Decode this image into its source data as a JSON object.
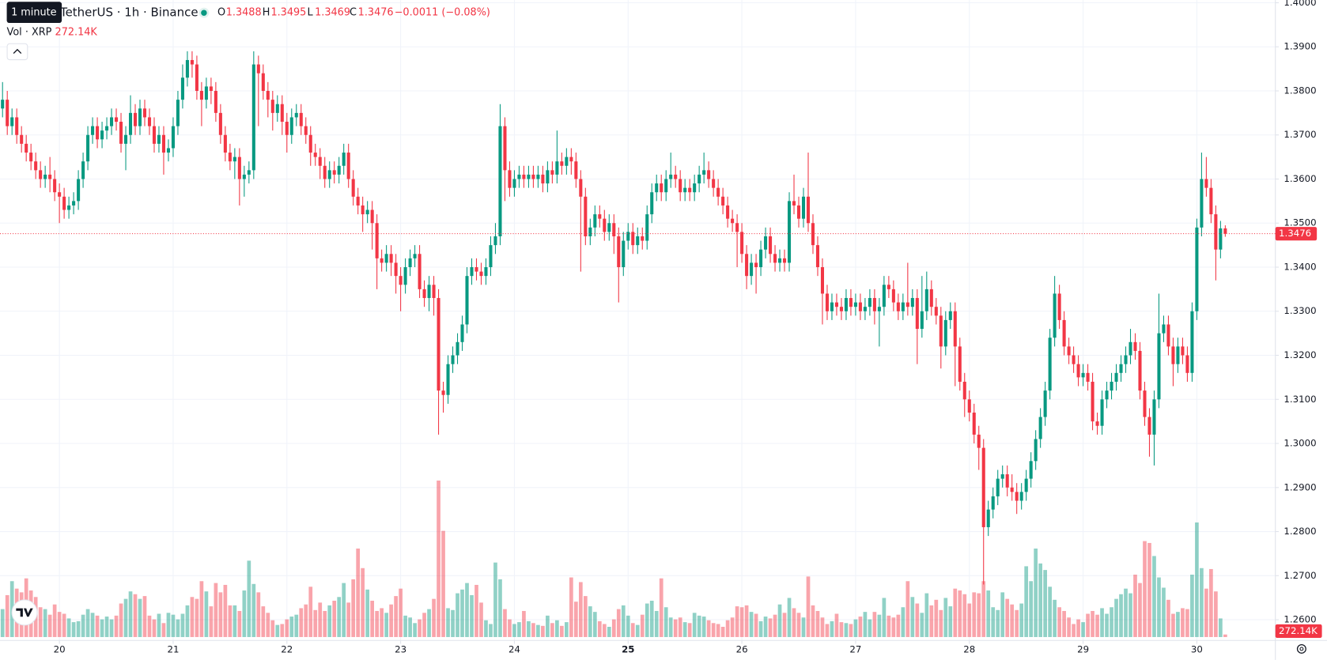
{
  "chart_data": {
    "type": "candlestick",
    "title": "TetherUS · 1h · Binance",
    "tooltip": "1 minute",
    "legend_labels": [
      "O",
      "H",
      "L",
      "C"
    ],
    "change": "−0.0011 (−0.08%)",
    "volume_title": "Vol · XRP",
    "up_color": "#089981",
    "down_color": "#f23645",
    "grid": true,
    "ylim": [
      1.2553,
      1.4006
    ],
    "yticks": [
      {
        "value": 1.4,
        "label": "1.4000"
      },
      {
        "value": 1.39,
        "label": "1.3900"
      },
      {
        "value": 1.38,
        "label": "1.3800"
      },
      {
        "value": 1.37,
        "label": "1.3700"
      },
      {
        "value": 1.36,
        "label": "1.3600"
      },
      {
        "value": 1.35,
        "label": "1.3500"
      },
      {
        "value": 1.34,
        "label": "1.3400"
      },
      {
        "value": 1.33,
        "label": "1.3300"
      },
      {
        "value": 1.32,
        "label": "1.3200"
      },
      {
        "value": 1.31,
        "label": "1.3100"
      },
      {
        "value": 1.3,
        "label": "1.3000"
      },
      {
        "value": 1.29,
        "label": "1.2900"
      },
      {
        "value": 1.28,
        "label": "1.2800"
      },
      {
        "value": 1.27,
        "label": "1.2700"
      },
      {
        "value": 1.26,
        "label": "1.2600"
      }
    ],
    "xticks": [
      {
        "value": 12,
        "label": "20"
      },
      {
        "value": 36,
        "label": "21"
      },
      {
        "value": 60,
        "label": "22"
      },
      {
        "value": 84,
        "label": "23"
      },
      {
        "value": 108,
        "label": "24"
      },
      {
        "value": 132,
        "label": "25",
        "bold": true
      },
      {
        "value": 156,
        "label": "26"
      },
      {
        "value": 180,
        "label": "27"
      },
      {
        "value": 204,
        "label": "28"
      },
      {
        "value": 228,
        "label": "29"
      },
      {
        "value": 252,
        "label": "30"
      }
    ],
    "open": [
      1.376,
      1.378,
      1.372,
      1.374,
      1.37,
      1.368,
      1.366,
      1.364,
      1.362,
      1.36,
      1.361,
      1.36,
      1.357,
      1.356,
      1.353,
      1.354,
      1.355,
      1.36,
      1.364,
      1.37,
      1.372,
      1.369,
      1.371,
      1.372,
      1.374,
      1.373,
      1.368,
      1.37,
      1.375,
      1.372,
      1.376,
      1.374,
      1.372,
      1.368,
      1.37,
      1.366,
      1.367,
      1.372,
      1.378,
      1.383,
      1.387,
      1.386,
      1.38,
      1.378,
      1.381,
      1.38,
      1.375,
      1.37,
      1.366,
      1.364,
      1.365,
      1.36,
      1.361,
      1.362,
      1.386,
      1.384,
      1.38,
      1.378,
      1.375,
      1.377,
      1.373,
      1.37,
      1.374,
      1.375,
      1.372,
      1.37,
      1.366,
      1.365,
      1.363,
      1.36,
      1.362,
      1.361,
      1.363,
      1.366,
      1.36,
      1.356,
      1.354,
      1.352,
      1.353,
      1.35,
      1.342,
      1.341,
      1.343,
      1.341,
      1.338,
      1.336,
      1.34,
      1.342,
      1.343,
      1.335,
      1.333,
      1.336,
      1.333,
      1.312,
      1.311,
      1.318,
      1.32,
      1.323,
      1.327,
      1.338,
      1.34,
      1.339,
      1.338,
      1.34,
      1.345,
      1.347,
      1.372,
      1.362,
      1.358,
      1.36,
      1.361,
      1.36,
      1.361,
      1.36,
      1.361,
      1.359,
      1.362,
      1.361,
      1.364,
      1.363,
      1.365,
      1.364,
      1.36,
      1.356,
      1.347,
      1.349,
      1.352,
      1.351,
      1.348,
      1.35,
      1.347,
      1.34,
      1.346,
      1.348,
      1.345,
      1.347,
      1.346,
      1.352,
      1.357,
      1.359,
      1.357,
      1.36,
      1.361,
      1.36,
      1.357,
      1.358,
      1.357,
      1.359,
      1.361,
      1.362,
      1.36,
      1.358,
      1.356,
      1.354,
      1.351,
      1.35,
      1.348,
      1.343,
      1.338,
      1.341,
      1.34,
      1.344,
      1.347,
      1.343,
      1.341,
      1.342,
      1.341,
      1.355,
      1.354,
      1.351,
      1.356,
      1.35,
      1.345,
      1.34,
      1.334,
      1.33,
      1.332,
      1.331,
      1.33,
      1.333,
      1.331,
      1.332,
      1.33,
      1.331,
      1.333,
      1.33,
      1.331,
      1.336,
      1.335,
      1.332,
      1.33,
      1.332,
      1.331,
      1.333,
      1.326,
      1.33,
      1.335,
      1.331,
      1.329,
      1.322,
      1.328,
      1.33,
      1.322,
      1.314,
      1.31,
      1.307,
      1.302,
      1.299,
      1.281,
      1.285,
      1.288,
      1.292,
      1.293,
      1.29,
      1.289,
      1.287,
      1.289,
      1.292,
      1.296,
      1.301,
      1.306,
      1.312,
      1.324,
      1.334,
      1.328,
      1.322,
      1.32,
      1.318,
      1.315,
      1.316,
      1.314,
      1.305,
      1.304,
      1.31,
      1.312,
      1.314,
      1.316,
      1.318,
      1.32,
      1.323,
      1.321,
      1.312,
      1.306,
      1.302,
      1.31,
      1.325,
      1.327,
      1.322,
      1.318,
      1.322,
      1.32,
      1.316,
      1.33,
      1.349,
      1.36,
      1.358,
      1.352,
      1.344,
      1.3488
    ],
    "high": [
      1.382,
      1.38,
      1.376,
      1.376,
      1.372,
      1.37,
      1.368,
      1.366,
      1.364,
      1.363,
      1.365,
      1.362,
      1.359,
      1.358,
      1.356,
      1.357,
      1.362,
      1.366,
      1.372,
      1.374,
      1.374,
      1.373,
      1.374,
      1.376,
      1.376,
      1.375,
      1.372,
      1.379,
      1.377,
      1.378,
      1.378,
      1.376,
      1.374,
      1.372,
      1.372,
      1.369,
      1.374,
      1.38,
      1.386,
      1.389,
      1.389,
      1.388,
      1.382,
      1.383,
      1.383,
      1.382,
      1.377,
      1.372,
      1.368,
      1.367,
      1.367,
      1.363,
      1.364,
      1.389,
      1.388,
      1.386,
      1.382,
      1.38,
      1.379,
      1.379,
      1.375,
      1.376,
      1.377,
      1.377,
      1.374,
      1.372,
      1.368,
      1.367,
      1.365,
      1.364,
      1.364,
      1.365,
      1.368,
      1.368,
      1.362,
      1.358,
      1.356,
      1.355,
      1.355,
      1.352,
      1.344,
      1.345,
      1.345,
      1.343,
      1.34,
      1.342,
      1.344,
      1.345,
      1.345,
      1.337,
      1.338,
      1.338,
      1.335,
      1.314,
      1.32,
      1.322,
      1.325,
      1.329,
      1.34,
      1.342,
      1.342,
      1.341,
      1.342,
      1.347,
      1.35,
      1.377,
      1.374,
      1.364,
      1.362,
      1.363,
      1.363,
      1.363,
      1.363,
      1.363,
      1.363,
      1.364,
      1.364,
      1.371,
      1.366,
      1.367,
      1.367,
      1.366,
      1.362,
      1.358,
      1.351,
      1.354,
      1.354,
      1.353,
      1.352,
      1.352,
      1.349,
      1.348,
      1.35,
      1.35,
      1.349,
      1.349,
      1.354,
      1.359,
      1.361,
      1.361,
      1.362,
      1.366,
      1.363,
      1.362,
      1.36,
      1.36,
      1.361,
      1.363,
      1.366,
      1.364,
      1.362,
      1.36,
      1.358,
      1.356,
      1.353,
      1.352,
      1.35,
      1.345,
      1.343,
      1.343,
      1.346,
      1.349,
      1.349,
      1.345,
      1.344,
      1.344,
      1.357,
      1.361,
      1.356,
      1.358,
      1.366,
      1.352,
      1.347,
      1.342,
      1.336,
      1.334,
      1.334,
      1.333,
      1.335,
      1.335,
      1.334,
      1.334,
      1.333,
      1.335,
      1.335,
      1.333,
      1.338,
      1.338,
      1.337,
      1.334,
      1.334,
      1.341,
      1.335,
      1.335,
      1.338,
      1.339,
      1.337,
      1.333,
      1.331,
      1.33,
      1.332,
      1.332,
      1.324,
      1.316,
      1.312,
      1.309,
      1.304,
      1.301,
      1.287,
      1.29,
      1.294,
      1.295,
      1.295,
      1.293,
      1.291,
      1.291,
      1.294,
      1.298,
      1.303,
      1.308,
      1.314,
      1.326,
      1.338,
      1.336,
      1.33,
      1.324,
      1.322,
      1.32,
      1.318,
      1.318,
      1.316,
      1.307,
      1.312,
      1.314,
      1.316,
      1.318,
      1.32,
      1.322,
      1.326,
      1.325,
      1.323,
      1.314,
      1.308,
      1.312,
      1.334,
      1.329,
      1.329,
      1.324,
      1.324,
      1.324,
      1.322,
      1.332,
      1.351,
      1.366,
      1.365,
      1.36,
      1.354,
      1.3505,
      1.3495
    ],
    "low": [
      1.374,
      1.37,
      1.37,
      1.368,
      1.366,
      1.364,
      1.362,
      1.36,
      1.358,
      1.358,
      1.357,
      1.355,
      1.35,
      1.351,
      1.351,
      1.352,
      1.353,
      1.358,
      1.362,
      1.368,
      1.367,
      1.367,
      1.369,
      1.37,
      1.371,
      1.366,
      1.362,
      1.368,
      1.37,
      1.37,
      1.372,
      1.37,
      1.366,
      1.366,
      1.361,
      1.364,
      1.365,
      1.37,
      1.376,
      1.381,
      1.383,
      1.378,
      1.372,
      1.376,
      1.377,
      1.373,
      1.368,
      1.364,
      1.362,
      1.36,
      1.354,
      1.356,
      1.359,
      1.36,
      1.372,
      1.378,
      1.374,
      1.371,
      1.373,
      1.37,
      1.366,
      1.368,
      1.372,
      1.37,
      1.368,
      1.363,
      1.363,
      1.36,
      1.358,
      1.358,
      1.359,
      1.359,
      1.361,
      1.358,
      1.354,
      1.352,
      1.348,
      1.35,
      1.344,
      1.335,
      1.339,
      1.339,
      1.338,
      1.334,
      1.33,
      1.334,
      1.338,
      1.34,
      1.333,
      1.331,
      1.33,
      1.329,
      1.302,
      1.307,
      1.309,
      1.316,
      1.318,
      1.321,
      1.325,
      1.336,
      1.337,
      1.336,
      1.336,
      1.338,
      1.343,
      1.345,
      1.355,
      1.356,
      1.356,
      1.358,
      1.358,
      1.358,
      1.358,
      1.358,
      1.357,
      1.357,
      1.359,
      1.359,
      1.361,
      1.361,
      1.361,
      1.358,
      1.339,
      1.345,
      1.345,
      1.347,
      1.349,
      1.346,
      1.346,
      1.343,
      1.332,
      1.338,
      1.344,
      1.343,
      1.343,
      1.344,
      1.344,
      1.35,
      1.355,
      1.355,
      1.355,
      1.358,
      1.358,
      1.355,
      1.355,
      1.355,
      1.355,
      1.357,
      1.359,
      1.358,
      1.356,
      1.354,
      1.352,
      1.349,
      1.348,
      1.34,
      1.341,
      1.335,
      1.336,
      1.334,
      1.338,
      1.342,
      1.341,
      1.339,
      1.339,
      1.339,
      1.339,
      1.352,
      1.349,
      1.349,
      1.348,
      1.343,
      1.338,
      1.327,
      1.328,
      1.328,
      1.329,
      1.328,
      1.328,
      1.329,
      1.329,
      1.328,
      1.328,
      1.329,
      1.327,
      1.322,
      1.329,
      1.333,
      1.33,
      1.328,
      1.328,
      1.329,
      1.329,
      1.318,
      1.324,
      1.328,
      1.329,
      1.327,
      1.317,
      1.32,
      1.326,
      1.313,
      1.312,
      1.306,
      1.305,
      1.3,
      1.294,
      1.268,
      1.279,
      1.283,
      1.286,
      1.29,
      1.288,
      1.287,
      1.284,
      1.285,
      1.287,
      1.29,
      1.294,
      1.299,
      1.304,
      1.31,
      1.322,
      1.326,
      1.32,
      1.318,
      1.316,
      1.313,
      1.313,
      1.312,
      1.303,
      1.302,
      1.302,
      1.308,
      1.31,
      1.312,
      1.314,
      1.316,
      1.318,
      1.319,
      1.31,
      1.304,
      1.297,
      1.295,
      1.308,
      1.323,
      1.32,
      1.313,
      1.316,
      1.318,
      1.314,
      1.314,
      1.328,
      1.347,
      1.356,
      1.35,
      1.337,
      1.342,
      1.3469
    ],
    "close": [
      1.378,
      1.372,
      1.374,
      1.37,
      1.368,
      1.366,
      1.364,
      1.362,
      1.36,
      1.361,
      1.36,
      1.357,
      1.356,
      1.353,
      1.354,
      1.355,
      1.36,
      1.364,
      1.37,
      1.372,
      1.369,
      1.371,
      1.372,
      1.374,
      1.373,
      1.368,
      1.37,
      1.375,
      1.372,
      1.376,
      1.374,
      1.372,
      1.368,
      1.37,
      1.366,
      1.367,
      1.372,
      1.378,
      1.383,
      1.387,
      1.386,
      1.38,
      1.378,
      1.381,
      1.38,
      1.375,
      1.37,
      1.366,
      1.364,
      1.365,
      1.36,
      1.361,
      1.362,
      1.386,
      1.384,
      1.38,
      1.378,
      1.375,
      1.377,
      1.373,
      1.37,
      1.374,
      1.375,
      1.372,
      1.37,
      1.366,
      1.365,
      1.363,
      1.36,
      1.362,
      1.361,
      1.363,
      1.366,
      1.36,
      1.356,
      1.354,
      1.352,
      1.353,
      1.35,
      1.342,
      1.341,
      1.343,
      1.341,
      1.338,
      1.336,
      1.34,
      1.342,
      1.343,
      1.335,
      1.333,
      1.336,
      1.333,
      1.312,
      1.311,
      1.318,
      1.32,
      1.323,
      1.327,
      1.338,
      1.34,
      1.339,
      1.338,
      1.34,
      1.345,
      1.347,
      1.372,
      1.362,
      1.358,
      1.36,
      1.361,
      1.36,
      1.361,
      1.36,
      1.361,
      1.359,
      1.362,
      1.361,
      1.364,
      1.363,
      1.365,
      1.364,
      1.36,
      1.356,
      1.347,
      1.349,
      1.352,
      1.351,
      1.348,
      1.35,
      1.347,
      1.34,
      1.346,
      1.348,
      1.345,
      1.347,
      1.346,
      1.352,
      1.357,
      1.359,
      1.357,
      1.36,
      1.361,
      1.36,
      1.357,
      1.358,
      1.357,
      1.359,
      1.361,
      1.362,
      1.36,
      1.358,
      1.356,
      1.354,
      1.351,
      1.35,
      1.348,
      1.343,
      1.338,
      1.341,
      1.34,
      1.344,
      1.347,
      1.343,
      1.341,
      1.342,
      1.341,
      1.355,
      1.354,
      1.351,
      1.356,
      1.35,
      1.345,
      1.34,
      1.334,
      1.33,
      1.332,
      1.331,
      1.33,
      1.333,
      1.331,
      1.332,
      1.33,
      1.331,
      1.333,
      1.33,
      1.331,
      1.336,
      1.335,
      1.332,
      1.33,
      1.332,
      1.331,
      1.333,
      1.326,
      1.33,
      1.335,
      1.331,
      1.329,
      1.322,
      1.328,
      1.33,
      1.322,
      1.314,
      1.31,
      1.307,
      1.302,
      1.299,
      1.281,
      1.285,
      1.288,
      1.292,
      1.293,
      1.29,
      1.289,
      1.287,
      1.289,
      1.292,
      1.296,
      1.301,
      1.306,
      1.312,
      1.324,
      1.334,
      1.328,
      1.322,
      1.32,
      1.318,
      1.315,
      1.316,
      1.314,
      1.305,
      1.304,
      1.31,
      1.312,
      1.314,
      1.316,
      1.318,
      1.32,
      1.323,
      1.321,
      1.312,
      1.306,
      1.302,
      1.31,
      1.325,
      1.327,
      1.322,
      1.318,
      1.322,
      1.32,
      1.316,
      1.33,
      1.349,
      1.36,
      1.358,
      1.352,
      1.344,
      1.3488,
      1.3476
    ],
    "volume": [
      3.0,
      4.5,
      6.0,
      5.2,
      4.8,
      6.3,
      5.0,
      4.3,
      3.2,
      3.0,
      2.4,
      3.5,
      2.7,
      2.5,
      2.0,
      1.6,
      1.7,
      2.4,
      3.0,
      2.6,
      2.3,
      1.9,
      2.2,
      1.9,
      2.3,
      3.6,
      4.1,
      4.9,
      4.6,
      4.1,
      4.4,
      2.3,
      1.9,
      2.5,
      1.5,
      2.6,
      2.4,
      1.9,
      2.5,
      3.4,
      4.3,
      4.1,
      6.0,
      4.9,
      3.3,
      5.8,
      4.8,
      5.6,
      3.4,
      3.4,
      2.8,
      5.0,
      8.2,
      5.7,
      4.8,
      3.3,
      2.6,
      1.8,
      1.3,
      1.4,
      1.9,
      2.2,
      2.4,
      3.1,
      3.5,
      5.4,
      2.9,
      3.7,
      2.8,
      3.4,
      3.9,
      4.3,
      5.8,
      3.7,
      6.2,
      9.5,
      7.4,
      5.1,
      3.9,
      2.8,
      3.1,
      2.6,
      3.5,
      4.4,
      5.2,
      2.3,
      2.1,
      1.5,
      1.9,
      2.6,
      3.0,
      4.1,
      16.8,
      11.4,
      3.1,
      2.9,
      4.7,
      5.1,
      5.8,
      4.5,
      5.6,
      3.7,
      1.8,
      1.4,
      8.0,
      6.2,
      3.0,
      1.9,
      1.4,
      1.6,
      2.8,
      1.7,
      1.5,
      1.3,
      1.2,
      2.3,
      1.5,
      1.8,
      1.2,
      1.6,
      6.4,
      3.8,
      5.9,
      4.4,
      3.3,
      2.7,
      1.7,
      1.4,
      1.1,
      1.9,
      3.0,
      3.4,
      2.3,
      1.5,
      1.3,
      2.4,
      3.6,
      3.9,
      2.8,
      6.3,
      3.2,
      2.1,
      1.9,
      2.1,
      1.6,
      1.5,
      2.6,
      2.3,
      2.2,
      1.8,
      1.5,
      1.4,
      1.1,
      1.8,
      2.1,
      3.3,
      3.2,
      3.4,
      2.7,
      2.5,
      1.7,
      2.2,
      2.0,
      2.4,
      3.5,
      2.6,
      4.2,
      3.1,
      2.6,
      2.1,
      6.5,
      3.4,
      2.8,
      2.1,
      1.4,
      1.7,
      2.5,
      1.6,
      1.5,
      1.4,
      1.9,
      2.2,
      2.7,
      1.9,
      2.7,
      2.4,
      4.2,
      2.3,
      2.1,
      2.4,
      3.2,
      6.0,
      4.3,
      3.6,
      2.6,
      4.7,
      3.4,
      4.0,
      2.9,
      4.2,
      3.3,
      5.2,
      5.0,
      4.6,
      3.6,
      4.8,
      4.7,
      6.0,
      5.0,
      3.2,
      2.9,
      4.8,
      4.1,
      3.5,
      2.9,
      3.6,
      7.6,
      6.0,
      9.5,
      7.9,
      7.2,
      5.4,
      4.0,
      3.2,
      2.8,
      2.1,
      1.4,
      1.9,
      1.6,
      2.5,
      2.8,
      2.4,
      3.1,
      2.5,
      3.2,
      4.1,
      4.6,
      5.2,
      4.7,
      6.7,
      5.8,
      10.3,
      10.1,
      8.7,
      6.4,
      5.3,
      4.0,
      2.5,
      2.7,
      3.1,
      3.0,
      6.7,
      12.3,
      7.4,
      5.2,
      7.3,
      4.9,
      2.0,
      0.27214
    ],
    "volume_labels": {
      "258": "272.14K"
    }
  }
}
